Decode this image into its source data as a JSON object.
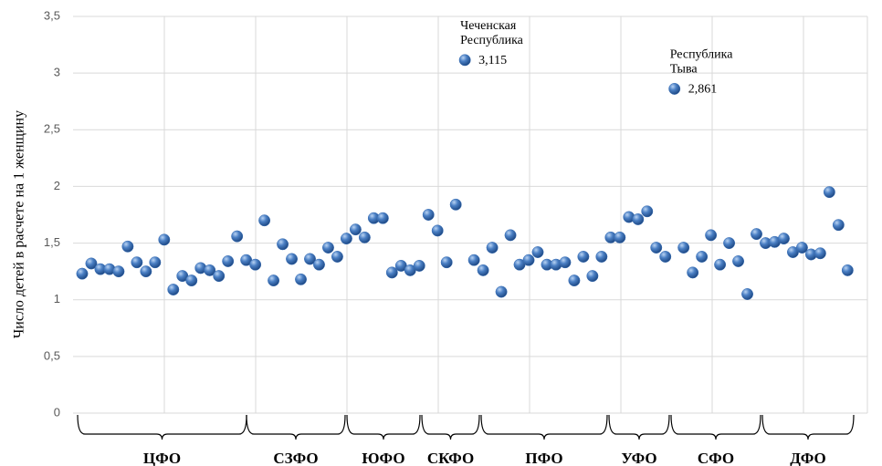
{
  "chart_data": {
    "type": "scatter",
    "y_label": "Число детей в расчете на 1 женщину",
    "ylim": [
      0,
      3.5
    ],
    "yticks": [
      0,
      {
        "value": 0.5,
        "label": "0,5"
      },
      1,
      {
        "value": 1.5,
        "label": "1,5"
      },
      2,
      {
        "value": 2.5,
        "label": "2,5"
      },
      3,
      {
        "value": 3.5,
        "label": "3,5"
      }
    ],
    "grid": true,
    "color": "#3a6fb5",
    "values": [
      1.23,
      1.32,
      1.27,
      1.27,
      1.25,
      1.47,
      1.33,
      1.25,
      1.33,
      1.53,
      1.09,
      1.21,
      1.17,
      1.28,
      1.26,
      1.21,
      1.34,
      1.56,
      1.35,
      1.31,
      1.7,
      1.17,
      1.49,
      1.36,
      1.18,
      1.36,
      1.31,
      1.46,
      1.38,
      1.54,
      1.62,
      1.55,
      1.72,
      1.72,
      1.24,
      1.3,
      1.26,
      1.3,
      1.75,
      1.61,
      1.33,
      1.84,
      3.115,
      1.35,
      1.26,
      1.46,
      1.07,
      1.57,
      1.31,
      1.35,
      1.42,
      1.31,
      1.31,
      1.33,
      1.17,
      1.38,
      1.21,
      1.38,
      1.55,
      1.55,
      1.73,
      1.71,
      1.78,
      1.46,
      1.38,
      2.861,
      1.46,
      1.24,
      1.38,
      1.57,
      1.31,
      1.5,
      1.34,
      1.05,
      1.58,
      1.5,
      1.51,
      1.54,
      1.42,
      1.46,
      1.4,
      1.41,
      1.95,
      1.66,
      1.26
    ],
    "value_labels": [
      null,
      null,
      null,
      null,
      null,
      null,
      null,
      null,
      null,
      null,
      null,
      null,
      null,
      null,
      null,
      null,
      null,
      null,
      null,
      null,
      null,
      null,
      null,
      null,
      null,
      null,
      null,
      null,
      null,
      null,
      null,
      null,
      null,
      null,
      null,
      null,
      null,
      null,
      null,
      null,
      null,
      null,
      "3,115",
      null,
      null,
      null,
      null,
      null,
      null,
      null,
      null,
      null,
      null,
      null,
      null,
      null,
      null,
      null,
      null,
      null,
      null,
      null,
      null,
      null,
      null,
      "2,861",
      null,
      null,
      null,
      null,
      null,
      null,
      null,
      null,
      null,
      null,
      null,
      null,
      null,
      null,
      null,
      null,
      null,
      null,
      null
    ],
    "point_labels": [
      null,
      null,
      null,
      null,
      null,
      null,
      null,
      null,
      null,
      null,
      null,
      null,
      null,
      null,
      null,
      null,
      null,
      null,
      null,
      null,
      null,
      null,
      null,
      null,
      null,
      null,
      null,
      null,
      null,
      null,
      null,
      null,
      null,
      null,
      null,
      null,
      null,
      null,
      null,
      null,
      null,
      null,
      [
        "Чеченская",
        "Республика"
      ],
      null,
      null,
      null,
      null,
      null,
      null,
      null,
      null,
      null,
      null,
      null,
      null,
      null,
      null,
      null,
      null,
      null,
      null,
      null,
      null,
      null,
      null,
      [
        "Республика",
        "Тыва"
      ],
      null,
      null,
      null,
      null,
      null,
      null,
      null,
      null,
      null,
      null,
      null,
      null,
      null,
      null,
      null,
      null,
      null,
      null,
      null
    ],
    "groups": [
      "ЦФО",
      "СЗФО",
      "ЮФО",
      "СКФО",
      "ПФО",
      "УФО",
      "СФО",
      "ДФО"
    ]
  }
}
